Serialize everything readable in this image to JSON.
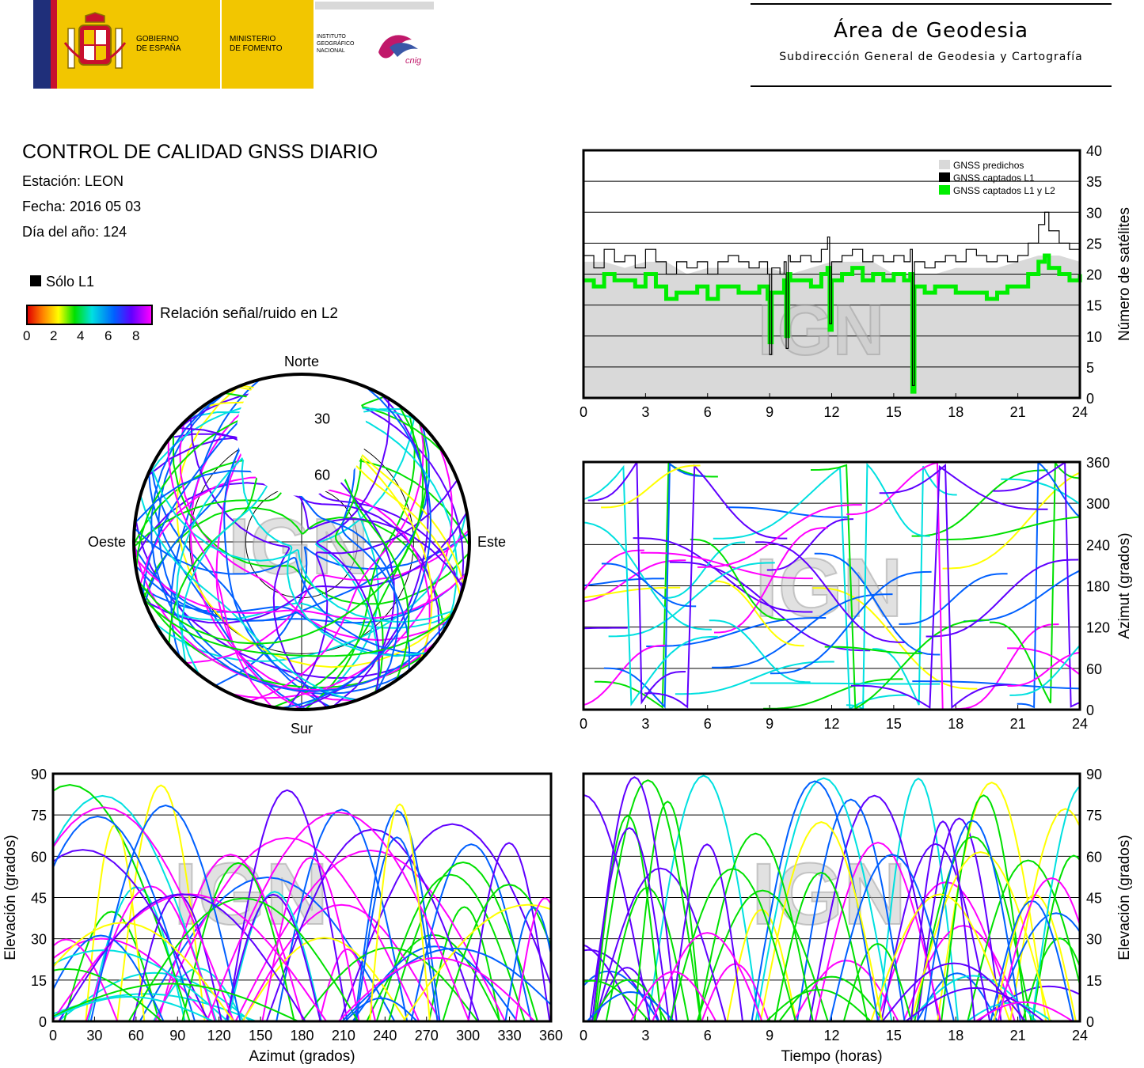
{
  "header": {
    "gobierno": [
      "GOBIERNO",
      "DE ESPAÑA"
    ],
    "ministerio": [
      "MINISTERIO",
      "DE FOMENTO"
    ],
    "instituto": [
      "INSTITUTO",
      "GEOGRÁFICO",
      "NACIONAL"
    ],
    "cnig": "cnig",
    "area_title": "Área de Geodesia",
    "area_subtitle": "Subdirección General de Geodesia y Cartografía"
  },
  "report": {
    "title": "CONTROL DE CALIDAD GNSS DIARIO",
    "station": "Estación: LEON",
    "date": "Fecha: 2016 05 03",
    "doy": "Día del año: 124"
  },
  "legend": {
    "l1_only": "Sólo L1",
    "snr_label": "Relación señal/ruido en L2",
    "snr_ticks": [
      "0",
      "2",
      "4",
      "6",
      "8"
    ],
    "snr_colors": [
      "#e00000",
      "#ff8000",
      "#ffff00",
      "#00e000",
      "#00e0e0",
      "#0060ff",
      "#6000ff",
      "#ff00ff"
    ]
  },
  "watermark": "IGN",
  "chart_data": [
    {
      "id": "sat-count",
      "type": "line",
      "xlim": [
        0,
        24
      ],
      "ylim": [
        0,
        40
      ],
      "xticks": [
        0,
        3,
        6,
        9,
        12,
        15,
        18,
        21,
        24
      ],
      "yticks": [
        0,
        5,
        10,
        15,
        20,
        25,
        30,
        35,
        40
      ],
      "ylabel": "Número de satélites",
      "legend": [
        "GNSS predichos",
        "GNSS captados L1",
        "GNSS captados L1 y L2"
      ],
      "series_colors": [
        "#d9d9d9",
        "#000000",
        "#00ee00"
      ],
      "series": [
        {
          "name": "GNSS predichos",
          "x": [
            0,
            1,
            2,
            3,
            4,
            5,
            6,
            7,
            8,
            9,
            10,
            11,
            12,
            13,
            14,
            15,
            16,
            17,
            18,
            19,
            20,
            21,
            22,
            23,
            24
          ],
          "values": [
            22,
            22,
            21,
            22,
            22,
            20,
            21,
            21,
            21,
            21,
            20,
            21,
            22,
            22,
            22,
            20,
            20,
            20,
            21,
            21,
            21,
            22,
            23,
            23,
            22
          ]
        },
        {
          "name": "GNSS captados L1",
          "x": [
            0,
            0.5,
            1,
            1.5,
            2,
            2.5,
            3,
            3.5,
            4,
            4.5,
            5,
            5.5,
            6,
            6.5,
            7,
            7.5,
            8,
            8.5,
            8.9,
            9,
            9.1,
            9.5,
            9.7,
            9.8,
            9.9,
            10,
            10.5,
            11,
            11.5,
            11.8,
            11.9,
            12,
            12.5,
            13,
            13.5,
            14,
            14.5,
            15,
            15.5,
            15.8,
            15.9,
            16,
            16.5,
            17,
            17.5,
            18,
            18.5,
            19,
            19.5,
            20,
            20.5,
            21,
            21.5,
            22,
            22.3,
            22.5,
            23,
            23.5,
            24
          ],
          "values": [
            23,
            21,
            24,
            22,
            23,
            21,
            24,
            22,
            20,
            22,
            21,
            22,
            20,
            22,
            23,
            22,
            21,
            22,
            20,
            7,
            21,
            20,
            22,
            8,
            23,
            22,
            23,
            22,
            24,
            26,
            12,
            22,
            23,
            24,
            22,
            23,
            22,
            23,
            22,
            24,
            2,
            22,
            21,
            22,
            23,
            22,
            24,
            23,
            22,
            23,
            22,
            23,
            25,
            28,
            30,
            27,
            25,
            24,
            25
          ]
        },
        {
          "name": "GNSS captados L1 y L2",
          "x": [
            0,
            0.5,
            1,
            1.5,
            2,
            2.5,
            3,
            3.5,
            4,
            4.5,
            5,
            5.5,
            6,
            6.5,
            7,
            7.5,
            8,
            8.5,
            8.9,
            9,
            9.1,
            9.5,
            9.7,
            9.8,
            9.9,
            10,
            10.5,
            11,
            11.5,
            11.8,
            11.9,
            12,
            12.5,
            13,
            13.5,
            14,
            14.5,
            15,
            15.5,
            15.8,
            15.9,
            16,
            16.5,
            17,
            17.5,
            18,
            18.5,
            19,
            19.5,
            20,
            20.5,
            21,
            21.5,
            22,
            22.3,
            22.5,
            23,
            23.5,
            24
          ],
          "values": [
            19,
            18,
            20,
            19,
            19,
            18,
            20,
            18,
            16,
            17,
            17,
            18,
            16,
            18,
            18,
            17,
            17,
            18,
            16,
            9,
            17,
            17,
            19,
            10,
            20,
            19,
            19,
            18,
            20,
            21,
            11,
            19,
            20,
            21,
            19,
            20,
            19,
            20,
            19,
            20,
            1,
            18,
            17,
            18,
            18,
            17,
            17,
            17,
            16,
            17,
            18,
            18,
            20,
            22,
            23,
            21,
            20,
            19,
            20
          ]
        }
      ]
    },
    {
      "id": "skyplot",
      "type": "scatter",
      "labels": {
        "north": "Norte",
        "south": "Sur",
        "east": "Este",
        "west": "Oeste"
      },
      "ring_labels": [
        "30",
        "60"
      ],
      "elevation_rings": [
        30,
        60
      ]
    },
    {
      "id": "azimuth-time",
      "type": "scatter",
      "xlim": [
        0,
        24
      ],
      "ylim": [
        0,
        360
      ],
      "xticks": [
        0,
        3,
        6,
        9,
        12,
        15,
        18,
        21,
        24
      ],
      "yticks": [
        0,
        60,
        120,
        180,
        240,
        300,
        360
      ],
      "ylabel": "Azimut (grados)"
    },
    {
      "id": "elevation-azimuth",
      "type": "scatter",
      "xlim": [
        0,
        360
      ],
      "ylim": [
        0,
        90
      ],
      "xticks": [
        0,
        30,
        60,
        90,
        120,
        150,
        180,
        210,
        240,
        270,
        300,
        330,
        360
      ],
      "yticks": [
        0,
        15,
        30,
        45,
        60,
        75,
        90
      ],
      "xlabel": "Azimut (grados)",
      "ylabel": "Elevación (grados)"
    },
    {
      "id": "elevation-time",
      "type": "scatter",
      "xlim": [
        0,
        24
      ],
      "ylim": [
        0,
        90
      ],
      "xticks": [
        0,
        3,
        6,
        9,
        12,
        15,
        18,
        21,
        24
      ],
      "yticks": [
        0,
        15,
        30,
        45,
        60,
        75,
        90
      ],
      "xlabel": "Tiempo (horas)",
      "ylabel": "Elevación (grados)"
    }
  ]
}
